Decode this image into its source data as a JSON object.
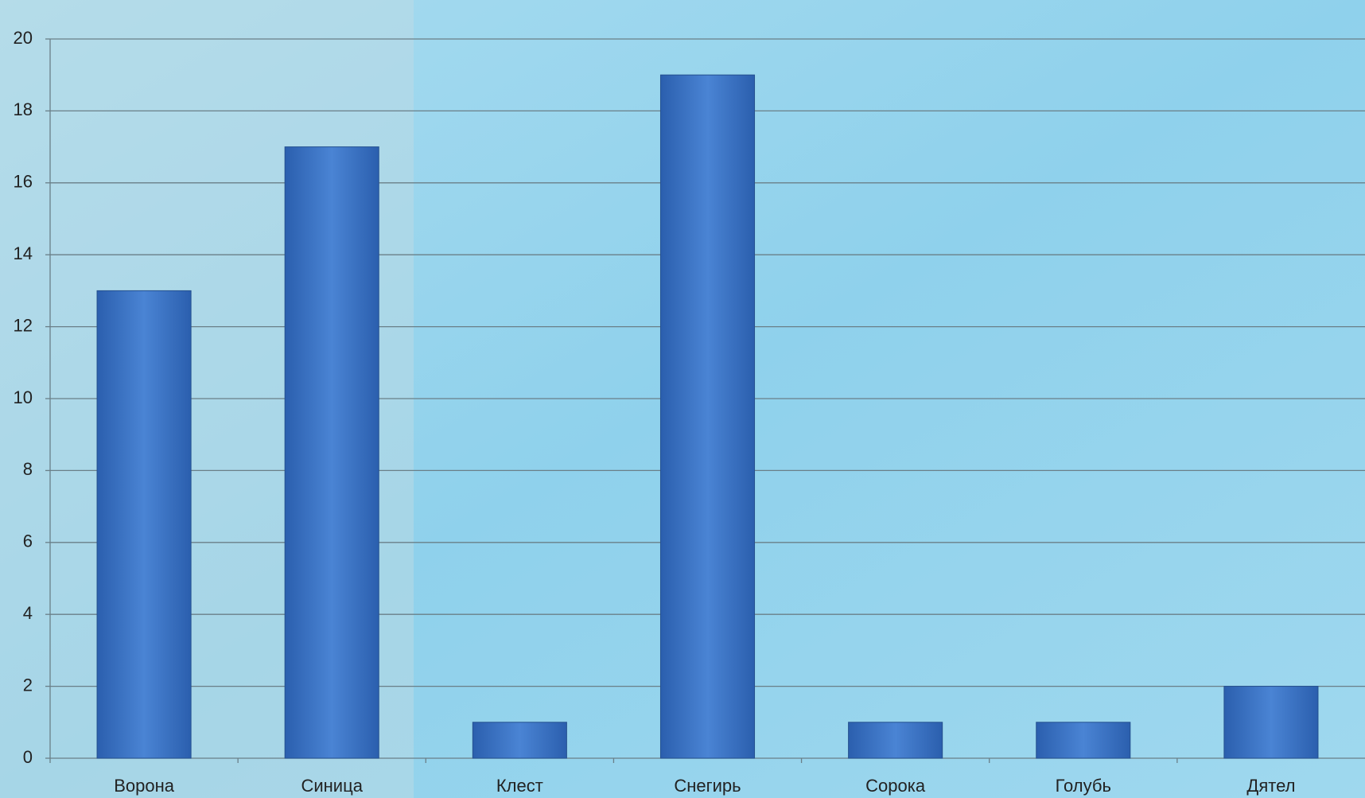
{
  "chart_data": {
    "type": "bar",
    "categories": [
      "Ворона",
      "Синица",
      "Клест",
      "Снегирь",
      "Сорока",
      "Голубь",
      "Дятел"
    ],
    "values": [
      13,
      17,
      1,
      19,
      1,
      1,
      2
    ],
    "color": "#3a72c4",
    "ylim": [
      0,
      20
    ],
    "yticks": [
      0,
      2,
      4,
      6,
      8,
      10,
      12,
      14,
      16,
      18,
      20
    ],
    "grid": true
  }
}
